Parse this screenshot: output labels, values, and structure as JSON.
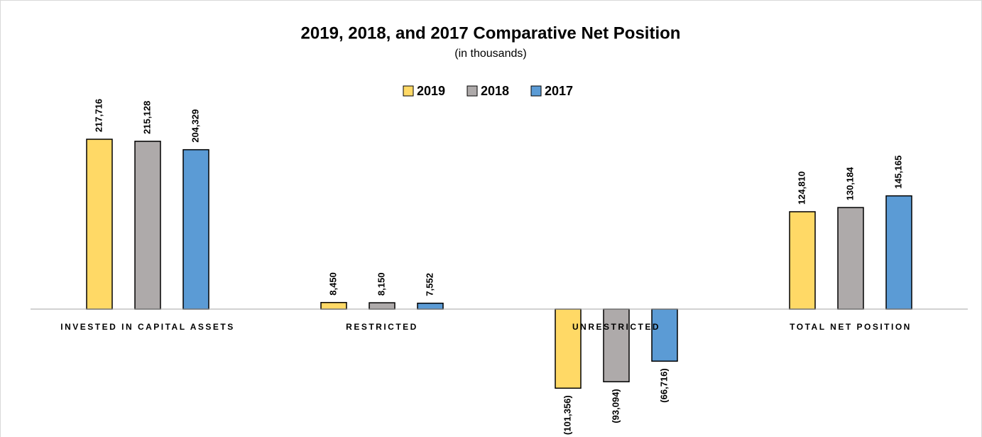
{
  "chart_data": {
    "type": "bar",
    "title": "2019, 2018, and 2017 Comparative Net Position",
    "subtitle": "(in thousands)",
    "categories": [
      "INVESTED IN CAPITAL ASSETS",
      "RESTRICTED",
      "UNRESTRICTED",
      "TOTAL NET POSITION"
    ],
    "series": [
      {
        "name": "2019",
        "color": "#FFD966",
        "values": [
          217716,
          8450,
          -101356,
          124810
        ],
        "value_labels": [
          "217,716",
          "8,450",
          "(101,356)",
          "124,810"
        ]
      },
      {
        "name": "2018",
        "color": "#AEAAAA",
        "values": [
          215128,
          8150,
          -93094,
          130184
        ],
        "value_labels": [
          "215,128",
          "8,150",
          "(93,094)",
          "130,184"
        ]
      },
      {
        "name": "2017",
        "color": "#5B9BD5",
        "values": [
          204329,
          7552,
          -66716,
          145165
        ],
        "value_labels": [
          "204,329",
          "7,552",
          "(66,716)",
          "145,165"
        ]
      }
    ],
    "ylim": [
      -160000,
      240000
    ],
    "legend": "top"
  }
}
